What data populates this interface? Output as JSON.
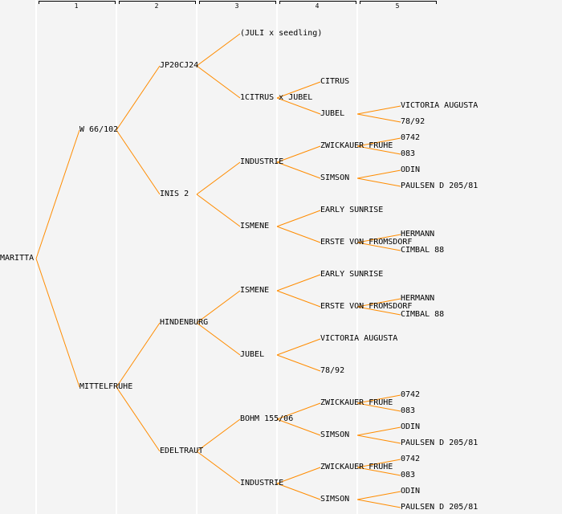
{
  "generations": [
    "1",
    "2",
    "3",
    "4",
    "5"
  ],
  "colors": {
    "link": "#ff8c00",
    "background": "#f4f4f4"
  },
  "pedigree": {
    "name": "MARITTA",
    "parents": [
      {
        "name": "W 66/102",
        "parents": [
          {
            "name": "JP20CJ24",
            "parents": [
              {
                "name": "(JULI x seedling)"
              },
              {
                "name": "1CITRUS x JUBEL",
                "parents": [
                  {
                    "name": "CITRUS"
                  },
                  {
                    "name": "JUBEL",
                    "parents": [
                      {
                        "name": "VICTORIA AUGUSTA"
                      },
                      {
                        "name": "78/92"
                      }
                    ]
                  }
                ]
              }
            ]
          },
          {
            "name": "INIS 2",
            "parents": [
              {
                "name": "INDUSTRIE",
                "parents": [
                  {
                    "name": "ZWICKAUER FRUHE",
                    "parents": [
                      {
                        "name": "0742"
                      },
                      {
                        "name": "083"
                      }
                    ]
                  },
                  {
                    "name": "SIMSON",
                    "parents": [
                      {
                        "name": "ODIN"
                      },
                      {
                        "name": "PAULSEN D 205/81"
                      }
                    ]
                  }
                ]
              },
              {
                "name": "ISMENE",
                "parents": [
                  {
                    "name": "EARLY SUNRISE"
                  },
                  {
                    "name": "ERSTE VON FROMSDORF",
                    "parents": [
                      {
                        "name": "HERMANN"
                      },
                      {
                        "name": "CIMBAL 88"
                      }
                    ]
                  }
                ]
              }
            ]
          }
        ]
      },
      {
        "name": "MITTELFRUHE",
        "parents": [
          {
            "name": "HINDENBURG",
            "parents": [
              {
                "name": "ISMENE",
                "parents": [
                  {
                    "name": "EARLY SUNRISE"
                  },
                  {
                    "name": "ERSTE VON FROMSDORF",
                    "parents": [
                      {
                        "name": "HERMANN"
                      },
                      {
                        "name": "CIMBAL 88"
                      }
                    ]
                  }
                ]
              },
              {
                "name": "JUBEL",
                "parents": [
                  {
                    "name": "VICTORIA AUGUSTA"
                  },
                  {
                    "name": "78/92"
                  }
                ]
              }
            ]
          },
          {
            "name": "EDELTRAUT",
            "parents": [
              {
                "name": "BOHM 155/06",
                "parents": [
                  {
                    "name": "ZWICKAUER FRUHE",
                    "parents": [
                      {
                        "name": "0742"
                      },
                      {
                        "name": "083"
                      }
                    ]
                  },
                  {
                    "name": "SIMSON",
                    "parents": [
                      {
                        "name": "ODIN"
                      },
                      {
                        "name": "PAULSEN D 205/81"
                      }
                    ]
                  }
                ]
              },
              {
                "name": "INDUSTRIE",
                "parents": [
                  {
                    "name": "ZWICKAUER FRUHE",
                    "parents": [
                      {
                        "name": "0742"
                      },
                      {
                        "name": "083"
                      }
                    ]
                  },
                  {
                    "name": "SIMSON",
                    "parents": [
                      {
                        "name": "ODIN"
                      },
                      {
                        "name": "PAULSEN D 205/81"
                      }
                    ]
                  }
                ]
              }
            ]
          }
        ]
      }
    ]
  }
}
